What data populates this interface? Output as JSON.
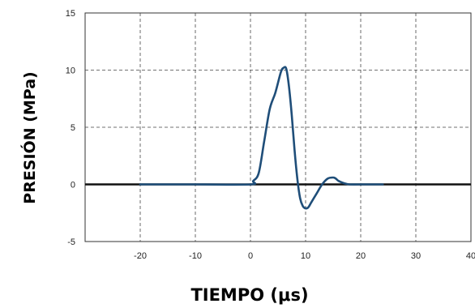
{
  "chart_data": {
    "type": "line",
    "title": "",
    "xlabel": "TIEMPO (μs)",
    "ylabel": "PRESIÓN (MPa)",
    "xlim": [
      -30,
      40
    ],
    "ylim": [
      -5,
      15
    ],
    "xticks": [
      -20,
      -10,
      0,
      10,
      20,
      30,
      40
    ],
    "xtick_labels": [
      "-20",
      "-10",
      "0",
      "10",
      "20",
      "30",
      "40"
    ],
    "yticks": [
      -5,
      0,
      5,
      10,
      15
    ],
    "ytick_labels": [
      "-5",
      "0",
      "5",
      "10",
      "15"
    ],
    "grid": true,
    "zero_line": true,
    "series": [
      {
        "color": "#1f4e79",
        "x": [
          -20,
          -10,
          0,
          0.5,
          1.5,
          2.5,
          3.5,
          4.5,
          5.5,
          6.0,
          6.5,
          7.0,
          7.5,
          8.0,
          8.5,
          9.0,
          9.5,
          10.0,
          10.5,
          11.0,
          12.0,
          13.0,
          14.0,
          15.0,
          15.5,
          16.0,
          17.0,
          18.0,
          20.0,
          24.0
        ],
        "y": [
          0,
          0,
          0,
          0.3,
          1.0,
          3.8,
          6.6,
          8.0,
          9.8,
          10.2,
          10.1,
          8.5,
          6.0,
          3.0,
          0.5,
          -1.2,
          -1.9,
          -2.1,
          -2.0,
          -1.6,
          -0.8,
          0.0,
          0.5,
          0.6,
          0.5,
          0.3,
          0.1,
          0.0,
          0.0,
          0.0
        ]
      }
    ]
  }
}
